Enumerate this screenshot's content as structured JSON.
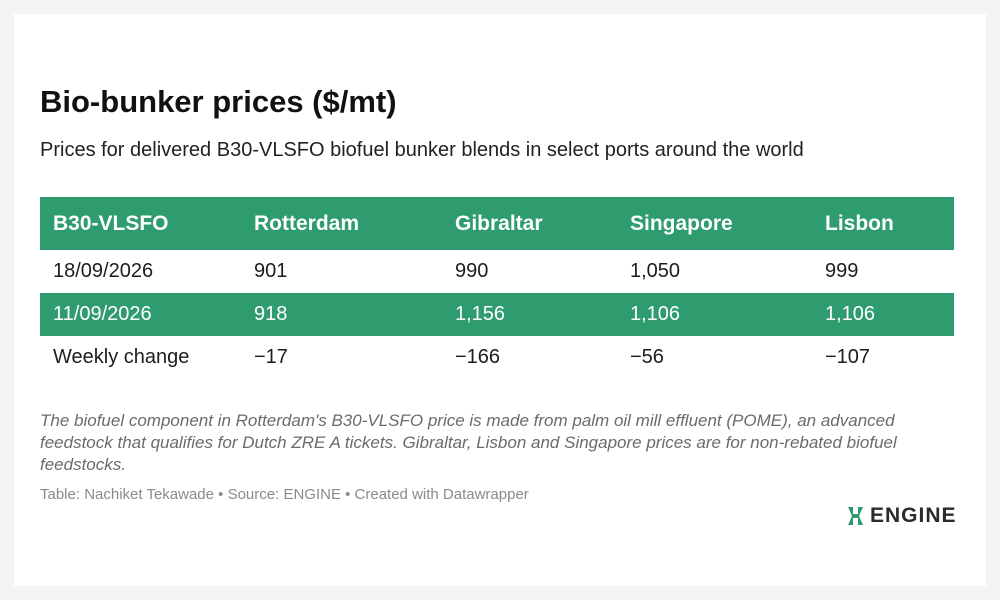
{
  "title": "Bio-bunker prices ($/mt)",
  "subtitle": "Prices for delivered B30-VLSFO biofuel bunker blends in select ports around the world",
  "chart_data": {
    "type": "table",
    "columns": [
      "B30-VLSFO",
      "Rotterdam",
      "Gibraltar",
      "Singapore",
      "Lisbon"
    ],
    "rows": [
      [
        "18/09/2026",
        "901",
        "990",
        "1,050",
        "999"
      ],
      [
        "11/09/2026",
        "918",
        "1,156",
        "1,106",
        "1,106"
      ],
      [
        "Weekly change",
        "−17",
        "−166",
        "−56",
        "−107"
      ]
    ],
    "highlight_color": "#2e9c6f"
  },
  "note": "The biofuel component in Rotterdam's B30-VLSFO price is made from palm oil mill effluent (POME), an advanced feedstock that qualifies for Dutch ZRE A tickets. Gibraltar, Lisbon and Singapore prices are for non-rebated biofuel feedstocks.",
  "credit": "Table: Nachiket Tekawade • Source: ENGINE • Created with Datawrapper",
  "logo": {
    "text": "ENGINE",
    "icon": "engine-logo-icon",
    "color": "#2e9c6f"
  }
}
